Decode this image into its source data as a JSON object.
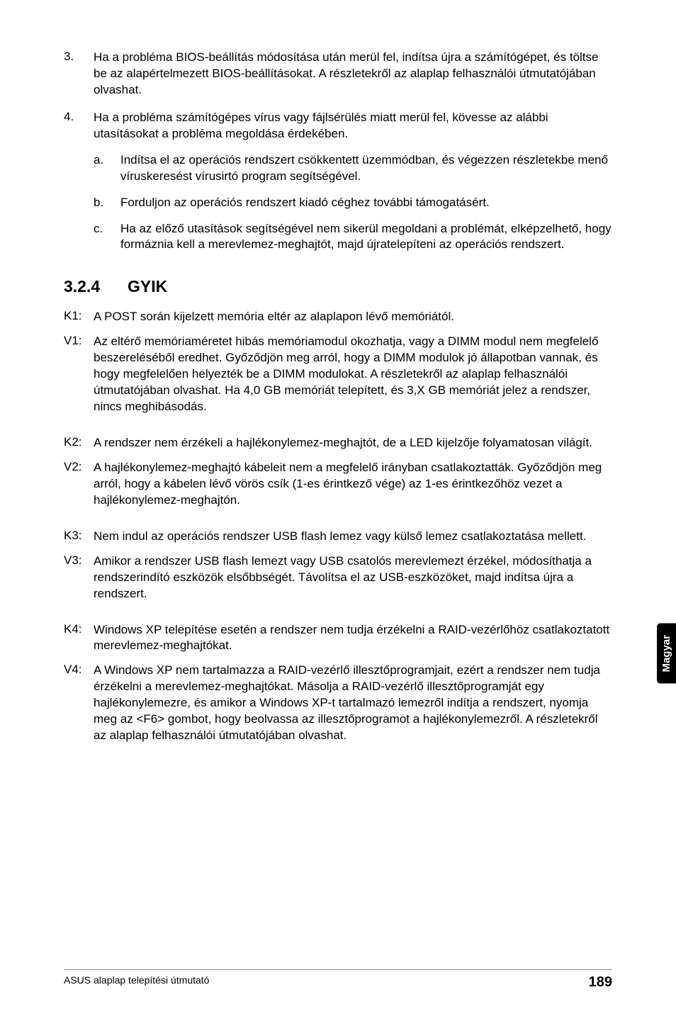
{
  "items": [
    {
      "n": "3.",
      "t": "Ha a probléma BIOS-beállítás módosítása után merül fel, indítsa újra a számítógépet, és töltse be az alapértelmezett BIOS-beállításokat. A részletekről az alaplap felhasználói útmutatójában olvashat."
    },
    {
      "n": "4.",
      "t": "Ha a probléma számítógépes vírus vagy fájlsérülés miatt merül fel, kövesse az alábbi utasításokat a probléma megoldása érdekében."
    }
  ],
  "subitems": [
    {
      "l": "a.",
      "t": "Indítsa el az operációs rendszert csökkentett üzemmódban, és végezzen részletekbe menő víruskeresést vírusirtó program segítségével."
    },
    {
      "l": "b.",
      "t": "Forduljon az operációs rendszert kiadó céghez további támogatásért."
    },
    {
      "l": "c.",
      "t": "Ha az előző utasítások segítségével nem sikerül megoldani a problémát, elképzelhető, hogy formáznia kell a merevlemez-meghajtót, majd újratelepíteni az operációs rendszert."
    }
  ],
  "section": {
    "num": "3.2.4",
    "title": "GYIK"
  },
  "qa": [
    {
      "k": "K1:",
      "kt": "A POST során kijelzett memória eltér az alaplapon lévő memóriától.",
      "v": "V1:",
      "vt": "Az eltérő memóriaméretet hibás memóriamodul okozhatja, vagy a DIMM modul nem megfelelő beszereléséből eredhet. Győződjön meg arról, hogy a DIMM modulok jó állapotban vannak, és hogy megfelelően helyezték be a DIMM modulokat. A részletekről az alaplap felhasználói útmutatójában olvashat. Ha 4,0 GB memóriát telepített, és 3,X GB memóriát jelez a rendszer, nincs meghibásodás."
    },
    {
      "k": "K2:",
      "kt": "A rendszer nem érzékeli a hajlékonylemez-meghajtót, de a LED kijelzője folyamatosan világít.",
      "v": "V2:",
      "vt": "A hajlékonylemez-meghajtó kábeleit nem a megfelelő irányban csatlakoztatták. Győződjön meg arról, hogy a kábelen lévő vörös csík (1-es érintkező vége) az 1-es érintkezőhöz vezet a hajlékonylemez-meghajtón."
    },
    {
      "k": "K3:",
      "kt": "Nem indul az operációs rendszer USB flash lemez vagy külső lemez csatlakoztatása mellett.",
      "v": "V3:",
      "vt": "Amikor a rendszer USB flash lemezt vagy USB csatolós merevlemezt érzékel, módosíthatja a rendszerindító eszközök elsőbbségét. Távolítsa el az USB-eszközöket, majd indítsa újra a rendszert."
    },
    {
      "k": "K4:",
      "kt": "Windows XP telepítése esetén a rendszer nem tudja érzékelni a RAID-vezérlőhöz csatlakoztatott merevlemez-meghajtókat.",
      "v": "V4:",
      "vt": "A Windows XP nem tartalmazza a RAID-vezérlő illesztőprogramjait, ezért a rendszer nem tudja érzékelni a merevlemez-meghajtókat. Másolja a RAID-vezérlő illesztőprogramját egy hajlékonylemezre, és amikor a Windows XP-t tartalmazó lemezről indítja a rendszert, nyomja meg az <F6> gombot, hogy beolvassa az illesztőprogramot a hajlékonylemezről. A részletekről az alaplap felhasználói útmutatójában olvashat."
    }
  ],
  "sidetab": "Magyar",
  "footer": {
    "left": "ASUS alaplap telepítési útmutató",
    "page": "189"
  }
}
